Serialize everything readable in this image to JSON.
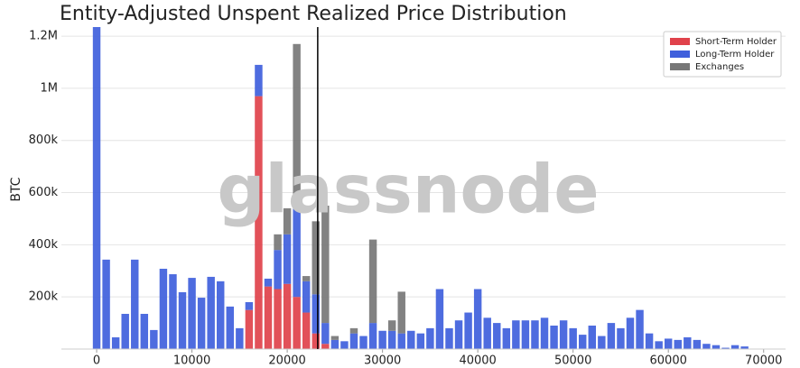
{
  "chart_data": {
    "type": "histogram",
    "title": "Entity-Adjusted Unspent Realized Price Distribution",
    "watermark": "glassnode",
    "y_label": "BTC",
    "bins": [
      -500,
      500,
      1500,
      2500,
      3500,
      4500,
      5500,
      6500,
      7500,
      8500,
      9500,
      10500,
      11500,
      12500,
      13500,
      14500,
      15500,
      16500,
      17500,
      18500,
      19500,
      20500,
      21500,
      22500,
      23500,
      24500,
      25500,
      26500,
      27500,
      28500,
      29500,
      30500,
      31500,
      32500,
      33500,
      34500,
      35500,
      36500,
      37500,
      38500,
      39500,
      40500,
      41500,
      42500,
      43500,
      44500,
      45500,
      46500,
      47500,
      48500,
      49500,
      50500,
      51500,
      52500,
      53500,
      54500,
      55500,
      56500,
      57500,
      58500,
      59500,
      60500,
      61500,
      62500,
      63500,
      64500,
      65500,
      66500,
      67500,
      68500
    ],
    "series": [
      {
        "name": "Short-Term Holder",
        "color": "#e0424b",
        "values": [
          0,
          0,
          0,
          0,
          0,
          0,
          0,
          0,
          0,
          0,
          0,
          0,
          0,
          0,
          0,
          0,
          150000,
          970000,
          240000,
          230000,
          250000,
          200000,
          140000,
          60000,
          20000,
          0,
          0,
          0,
          0,
          0,
          0,
          0,
          0,
          0,
          0,
          0,
          0,
          0,
          0,
          0,
          0,
          0,
          0,
          0,
          0,
          0,
          0,
          0,
          0,
          0,
          0,
          0,
          0,
          0,
          0,
          0,
          0,
          0,
          0,
          0,
          0,
          0,
          0,
          0,
          0,
          0,
          0,
          0,
          0
        ]
      },
      {
        "name": "Long-Term Holder",
        "color": "#3f5fdc",
        "values": [
          1250000,
          343000,
          45000,
          135000,
          343000,
          135000,
          73000,
          308000,
          287000,
          218000,
          273000,
          197000,
          277000,
          260000,
          163000,
          80000,
          30000,
          120000,
          30000,
          150000,
          190000,
          350000,
          120000,
          150000,
          80000,
          35000,
          30000,
          60000,
          50000,
          100000,
          70000,
          70000,
          60000,
          70000,
          60000,
          80000,
          230000,
          80000,
          110000,
          140000,
          230000,
          120000,
          100000,
          80000,
          110000,
          110000,
          110000,
          120000,
          90000,
          110000,
          80000,
          55000,
          90000,
          50000,
          100000,
          80000,
          120000,
          150000,
          60000,
          30000,
          40000,
          35000,
          45000,
          35000,
          20000,
          15000,
          5000,
          15000,
          10000
        ]
      },
      {
        "name": "Exchanges",
        "color": "#777777",
        "values": [
          0,
          0,
          0,
          0,
          0,
          0,
          0,
          0,
          0,
          0,
          0,
          0,
          0,
          0,
          0,
          0,
          0,
          0,
          0,
          60000,
          100000,
          620000,
          20000,
          280000,
          450000,
          15000,
          0,
          20000,
          0,
          320000,
          0,
          40000,
          160000,
          0,
          0,
          0,
          0,
          0,
          0,
          0,
          0,
          0,
          0,
          0,
          0,
          0,
          0,
          0,
          0,
          0,
          0,
          0,
          0,
          0,
          0,
          0,
          0,
          0,
          0,
          0,
          0,
          0,
          0,
          0,
          0,
          0,
          0,
          0,
          0
        ]
      }
    ],
    "vline": 23200,
    "xlim": [
      -3700,
      72300
    ],
    "ylim": [
      0,
      1235000
    ],
    "xticks": [
      0,
      10000,
      20000,
      30000,
      40000,
      50000,
      60000,
      70000
    ],
    "yticks": [
      {
        "value": 200000,
        "label": "200k"
      },
      {
        "value": 400000,
        "label": "400k"
      },
      {
        "value": 600000,
        "label": "600k"
      },
      {
        "value": 800000,
        "label": "800k"
      },
      {
        "value": 1000000,
        "label": "1M"
      },
      {
        "value": 1200000,
        "label": "1.2M"
      }
    ],
    "grid": true,
    "legend": "upper right"
  }
}
